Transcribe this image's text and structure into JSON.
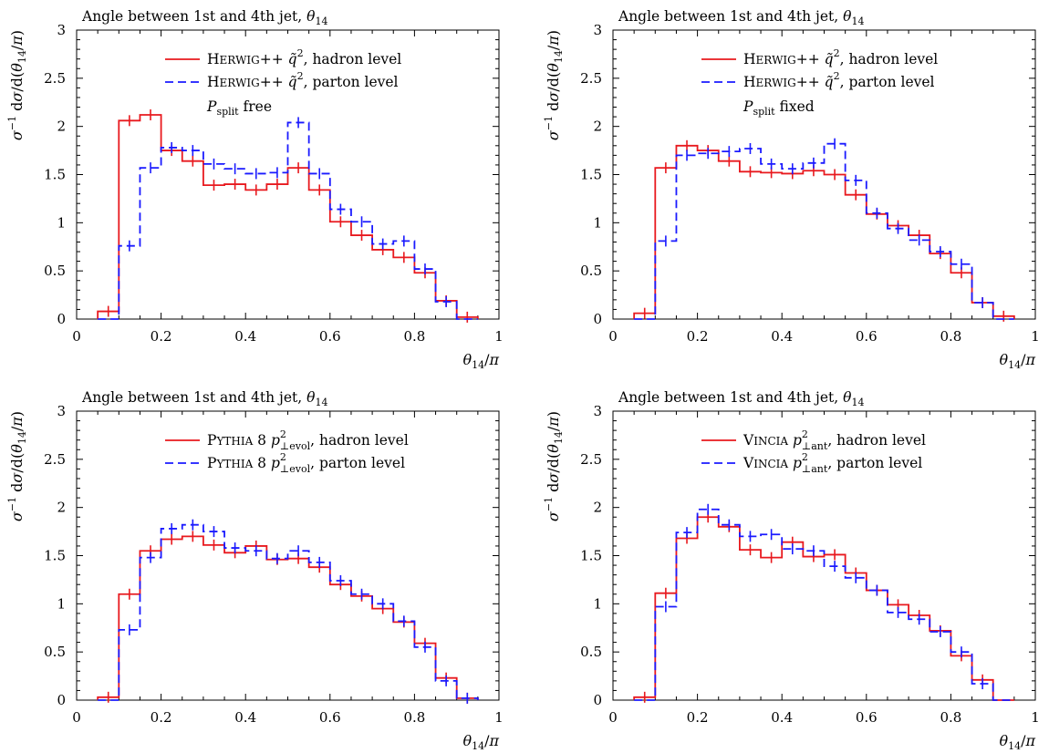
{
  "figure": {
    "xlabel": "θ14/π",
    "ylabel": "σ−1 dσ/d(θ14/π)",
    "series_colors": {
      "hadron": "#e8191e",
      "parton": "#1a1aff"
    }
  },
  "chart_data": [
    {
      "type": "step",
      "title": "Angle between 1st and 4th jet, θ14",
      "xlabel": "θ14/π",
      "ylabel": "σ−1 dσ/d(θ14/π)",
      "xlim": [
        0,
        1
      ],
      "ylim": [
        0,
        3
      ],
      "xticks": [
        "0",
        "0.2",
        "0.4",
        "0.6",
        "0.8",
        "1"
      ],
      "yticks": [
        "0",
        "0.5",
        "1",
        "1.5",
        "2",
        "2.5",
        "3"
      ],
      "grid": false,
      "legend_position": "top-right",
      "bin_edges": [
        0.05,
        0.1,
        0.15,
        0.2,
        0.25,
        0.3,
        0.35,
        0.4,
        0.45,
        0.5,
        0.55,
        0.6,
        0.65,
        0.7,
        0.75,
        0.8,
        0.85,
        0.9,
        0.95
      ],
      "series": [
        {
          "name": "Herwig++ q̃2, hadron level",
          "style": "solid",
          "values": [
            0.08,
            2.06,
            2.12,
            1.75,
            1.64,
            1.39,
            1.4,
            1.34,
            1.4,
            1.57,
            1.34,
            1.01,
            0.87,
            0.72,
            0.64,
            0.48,
            0.19,
            0.02
          ]
        },
        {
          "name": "Herwig++ q̃2, parton level",
          "style": "dashed",
          "values": [
            0.0,
            0.76,
            1.57,
            1.78,
            1.75,
            1.61,
            1.56,
            1.51,
            1.52,
            2.04,
            1.51,
            1.14,
            1.01,
            0.78,
            0.81,
            0.52,
            0.18,
            0.0
          ]
        }
      ],
      "legend": [
        {
          "series": 0,
          "sc": "Herwig",
          "rest": "++ q̃",
          "sup": "2",
          "tail": ", hadron level"
        },
        {
          "series": 1,
          "sc": "Herwig",
          "rest": "++ q̃",
          "sup": "2",
          "tail": ", parton level"
        }
      ],
      "annotation": {
        "main": "P",
        "sub": "split",
        "tail": " free"
      }
    },
    {
      "type": "step",
      "title": "Angle between 1st and 4th jet, θ14",
      "xlabel": "θ14/π",
      "ylabel": "σ−1 dσ/d(θ14/π)",
      "xlim": [
        0,
        1
      ],
      "ylim": [
        0,
        3
      ],
      "xticks": [
        "0",
        "0.2",
        "0.4",
        "0.6",
        "0.8",
        "1"
      ],
      "yticks": [
        "0",
        "0.5",
        "1",
        "1.5",
        "2",
        "2.5",
        "3"
      ],
      "grid": false,
      "legend_position": "top-right",
      "bin_edges": [
        0.05,
        0.1,
        0.15,
        0.2,
        0.25,
        0.3,
        0.35,
        0.4,
        0.45,
        0.5,
        0.55,
        0.6,
        0.65,
        0.7,
        0.75,
        0.8,
        0.85,
        0.9,
        0.95
      ],
      "series": [
        {
          "name": "Herwig++ q̃2, hadron level",
          "style": "solid",
          "values": [
            0.06,
            1.57,
            1.8,
            1.75,
            1.64,
            1.53,
            1.52,
            1.51,
            1.54,
            1.5,
            1.29,
            1.09,
            0.97,
            0.87,
            0.68,
            0.48,
            0.17,
            0.03
          ]
        },
        {
          "name": "Herwig++ q̃2, parton level",
          "style": "dashed",
          "values": [
            0.0,
            0.81,
            1.7,
            1.72,
            1.74,
            1.77,
            1.61,
            1.56,
            1.62,
            1.82,
            1.44,
            1.1,
            0.94,
            0.82,
            0.7,
            0.57,
            0.17,
            0.0
          ]
        }
      ],
      "legend": [
        {
          "series": 0,
          "sc": "Herwig",
          "rest": "++ q̃",
          "sup": "2",
          "tail": ", hadron level"
        },
        {
          "series": 1,
          "sc": "Herwig",
          "rest": "++ q̃",
          "sup": "2",
          "tail": ", parton level"
        }
      ],
      "annotation": {
        "main": "P",
        "sub": "split",
        "tail": " fixed"
      }
    },
    {
      "type": "step",
      "title": "Angle between 1st and 4th jet, θ14",
      "xlabel": "θ14/π",
      "ylabel": "σ−1 dσ/d(θ14/π)",
      "xlim": [
        0,
        1
      ],
      "ylim": [
        0,
        3
      ],
      "xticks": [
        "0",
        "0.2",
        "0.4",
        "0.6",
        "0.8",
        "1"
      ],
      "yticks": [
        "0",
        "0.5",
        "1",
        "1.5",
        "2",
        "2.5",
        "3"
      ],
      "grid": false,
      "legend_position": "top-right",
      "bin_edges": [
        0.05,
        0.1,
        0.15,
        0.2,
        0.25,
        0.3,
        0.35,
        0.4,
        0.45,
        0.5,
        0.55,
        0.6,
        0.65,
        0.7,
        0.75,
        0.8,
        0.85,
        0.9,
        0.95
      ],
      "series": [
        {
          "name": "Pythia 8 p2⊥evol, hadron level",
          "style": "solid",
          "values": [
            0.03,
            1.1,
            1.55,
            1.67,
            1.7,
            1.61,
            1.53,
            1.6,
            1.46,
            1.47,
            1.38,
            1.2,
            1.08,
            0.95,
            0.81,
            0.59,
            0.23,
            0.02
          ]
        },
        {
          "name": "Pythia 8 p2⊥evol, parton level",
          "style": "dashed",
          "values": [
            0.0,
            0.73,
            1.48,
            1.78,
            1.82,
            1.75,
            1.58,
            1.55,
            1.47,
            1.55,
            1.43,
            1.24,
            1.1,
            1.0,
            0.82,
            0.55,
            0.2,
            0.02
          ]
        }
      ],
      "legend": [
        {
          "series": 0,
          "sc": "Pythia",
          "rest": " 8 p",
          "sup": "2",
          "sub": "⊥evol",
          "tail": ", hadron level"
        },
        {
          "series": 1,
          "sc": "Pythia",
          "rest": " 8 p",
          "sup": "2",
          "sub": "⊥evol",
          "tail": ", parton level"
        }
      ]
    },
    {
      "type": "step",
      "title": "Angle between 1st and 4th jet, θ14",
      "xlabel": "θ14/π",
      "ylabel": "σ−1 dσ/d(θ14/π)",
      "xlim": [
        0,
        1
      ],
      "ylim": [
        0,
        3
      ],
      "xticks": [
        "0",
        "0.2",
        "0.4",
        "0.6",
        "0.8",
        "1"
      ],
      "yticks": [
        "0",
        "0.5",
        "1",
        "1.5",
        "2",
        "2.5",
        "3"
      ],
      "grid": false,
      "legend_position": "top-right",
      "bin_edges": [
        0.05,
        0.1,
        0.15,
        0.2,
        0.25,
        0.3,
        0.35,
        0.4,
        0.45,
        0.5,
        0.55,
        0.6,
        0.65,
        0.7,
        0.75,
        0.8,
        0.85,
        0.9,
        0.95
      ],
      "series": [
        {
          "name": "Vincia p2⊥ant, hadron level",
          "style": "solid",
          "values": [
            0.03,
            1.11,
            1.68,
            1.9,
            1.8,
            1.56,
            1.48,
            1.64,
            1.49,
            1.51,
            1.32,
            1.14,
            0.99,
            0.88,
            0.72,
            0.46,
            0.21,
            0.0
          ]
        },
        {
          "name": "Vincia p2⊥ant, parton level",
          "style": "dashed",
          "values": [
            0.0,
            0.97,
            1.74,
            1.98,
            1.82,
            1.7,
            1.72,
            1.57,
            1.55,
            1.39,
            1.27,
            1.14,
            0.91,
            0.84,
            0.71,
            0.5,
            0.17,
            0.0
          ]
        }
      ],
      "legend": [
        {
          "series": 0,
          "sc": "Vincia",
          "rest": " p",
          "sup": "2",
          "sub": "⊥ant",
          "tail": ", hadron level"
        },
        {
          "series": 1,
          "sc": "Vincia",
          "rest": " p",
          "sup": "2",
          "sub": "⊥ant",
          "tail": ", parton level"
        }
      ]
    }
  ]
}
